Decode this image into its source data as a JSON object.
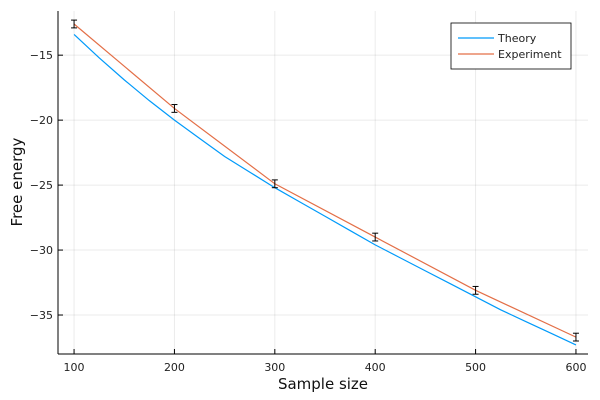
{
  "chart_data": {
    "type": "line",
    "xlabel": "Sample size",
    "ylabel": "Free energy",
    "xlim": [
      84,
      612
    ],
    "ylim": [
      -38.0,
      -11.6
    ],
    "xticks": [
      100,
      200,
      300,
      400,
      500,
      600
    ],
    "yticks": [
      -35,
      -30,
      -25,
      -20,
      -15
    ],
    "ytick_labels": [
      "−35",
      "−30",
      "−25",
      "−20",
      "−15"
    ],
    "grid": true,
    "legend_position": "top-right",
    "series": [
      {
        "name": "Theory",
        "color": "#009AFA",
        "x": [
          100,
          125,
          150,
          175,
          200,
          225,
          250,
          275,
          300,
          325,
          350,
          375,
          400,
          425,
          450,
          475,
          500,
          525,
          550,
          575,
          600
        ],
        "y": [
          -13.4,
          -15.2,
          -16.9,
          -18.5,
          -20.0,
          -21.4,
          -22.8,
          -24.0,
          -25.2,
          -26.3,
          -27.4,
          -28.5,
          -29.6,
          -30.6,
          -31.6,
          -32.6,
          -33.6,
          -34.6,
          -35.5,
          -36.4,
          -37.3
        ]
      },
      {
        "name": "Experiment",
        "color": "#E36F47",
        "x": [
          100,
          200,
          300,
          400,
          500,
          600
        ],
        "y": [
          -12.6,
          -19.1,
          -24.9,
          -29.0,
          -33.1,
          -36.7
        ],
        "error": [
          0.3,
          0.3,
          0.3,
          0.3,
          0.3,
          0.3
        ],
        "error_color": "#000000"
      }
    ]
  }
}
